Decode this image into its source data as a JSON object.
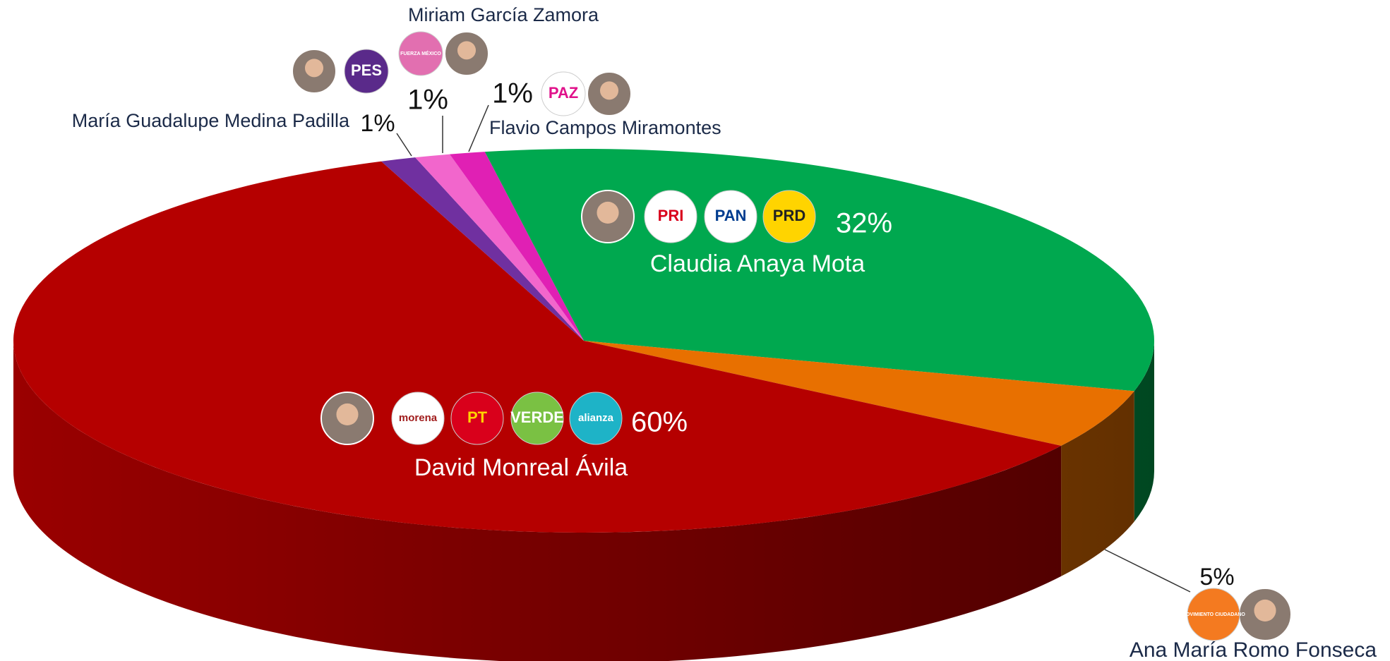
{
  "chart_data": {
    "type": "pie3d",
    "categories": [
      "Claudia Anaya Mota",
      "Ana María Romo Fonseca",
      "David Monreal Ávila",
      "María Guadalupe Medina Padilla",
      "Miriam García Zamora",
      "Flavio Campos Miramontes"
    ],
    "values": [
      32,
      5,
      60,
      1,
      1,
      1
    ],
    "value_labels": [
      "32%",
      "5%",
      "60%",
      "1%",
      "1%",
      "1%"
    ],
    "colors": [
      "#00a84f",
      "#e87000",
      "#b50000",
      "#7030a0",
      "#f266cc",
      "#e020b4"
    ],
    "party_logos": [
      [
        "PRI",
        "PAN",
        "PRD"
      ],
      [
        "MOVIMIENTO CIUDADANO"
      ],
      [
        "morena",
        "PT",
        "VERDE",
        "alianza"
      ],
      [
        "PES"
      ],
      [
        "FUERZA MÉXICO"
      ],
      [
        "PAZ"
      ]
    ]
  }
}
